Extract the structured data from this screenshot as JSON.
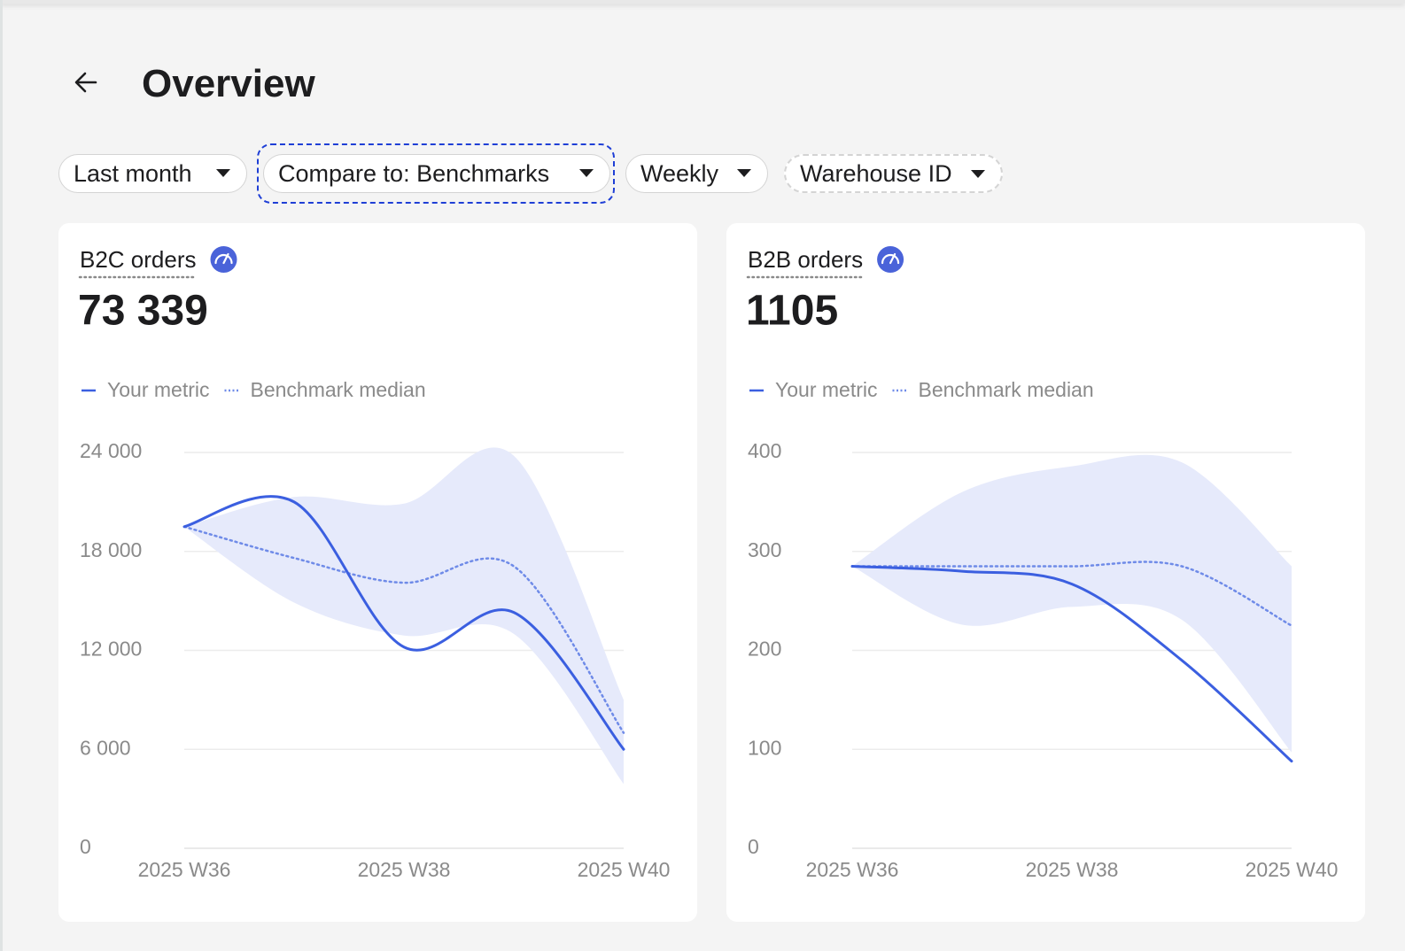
{
  "header": {
    "title": "Overview"
  },
  "filters": [
    "Last month",
    "Compare to: Benchmarks",
    "Weekly",
    "Warehouse ID"
  ],
  "cards": [
    {
      "title": "B2C orders",
      "value": "73 339",
      "chart": {
        "type": "line",
        "categories": [
          "2025 W36",
          null,
          "2025 W38",
          null,
          "2025 W40"
        ],
        "series": [
          {
            "name": "Your metric",
            "color": "#3b5fe0",
            "style": "solid",
            "values": [
              19500,
              21000,
              12200,
              14300,
              6000
            ]
          },
          {
            "name": "Benchmark median",
            "color": "#6f8be8",
            "style": "dotted",
            "values": [
              19500,
              17600,
              16100,
              17100,
              7000
            ]
          }
        ],
        "band": {
          "color": "#e6eafb",
          "upper": [
            19500,
            21300,
            20900,
            23800,
            9000
          ],
          "lower": [
            19500,
            14900,
            12900,
            13000,
            3900
          ]
        },
        "ylim": [
          0,
          24000
        ],
        "yticks": [
          0,
          {
            "value": 6000,
            "label": "6 000"
          },
          {
            "value": 12000,
            "label": "12 000"
          },
          {
            "value": 18000,
            "label": "18 000"
          },
          {
            "value": 24000,
            "label": "24 000"
          }
        ],
        "grid": true
      }
    },
    {
      "title": "B2B orders",
      "value": "1105",
      "chart": {
        "type": "line",
        "categories": [
          "2025 W36",
          null,
          "2025 W38",
          null,
          "2025 W40"
        ],
        "series": [
          {
            "name": "Your metric",
            "color": "#3b5fe0",
            "style": "solid",
            "values": [
              285,
              280,
              267,
              190,
              88
            ]
          },
          {
            "name": "Benchmark median",
            "color": "#6f8be8",
            "style": "dotted",
            "values": [
              285,
              285,
              285,
              285,
              225
            ]
          }
        ],
        "band": {
          "color": "#e6eafb",
          "upper": [
            285,
            360,
            386,
            390,
            285
          ],
          "lower": [
            285,
            226,
            244,
            231,
            97
          ]
        },
        "ylim": [
          0,
          400
        ],
        "yticks": [
          0,
          100,
          200,
          300,
          400
        ],
        "grid": true
      }
    }
  ]
}
